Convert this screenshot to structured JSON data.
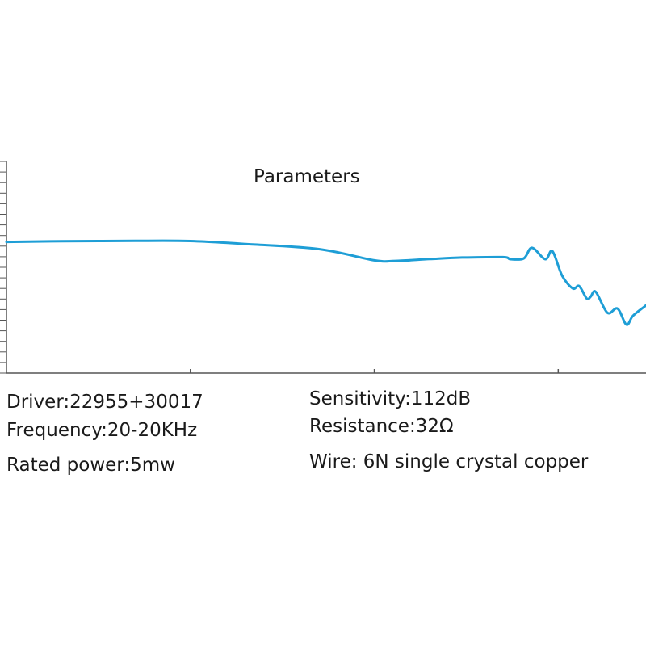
{
  "chart_data": {
    "type": "line",
    "title": "Parameters",
    "xlabel": "",
    "ylabel": "",
    "x_scale": "log",
    "xlim": [
      10,
      30000
    ],
    "ylim": [
      0,
      100
    ],
    "grid": false,
    "series": [
      {
        "color": "#1e9ed6",
        "x": [
          10,
          20,
          50,
          100,
          200,
          500,
          1000,
          1300,
          2000,
          3000,
          5000,
          5500,
          6500,
          7200,
          8500,
          9300,
          10500,
          12000,
          13000,
          14300,
          15000,
          16000,
          18500,
          21000,
          23500,
          25500,
          30000
        ],
        "y": [
          62,
          62.3,
          62.5,
          62.4,
          61,
          58.6,
          53.3,
          53,
          53.9,
          54.6,
          54.8,
          53.8,
          54.2,
          59.2,
          53.8,
          57.6,
          46,
          40,
          41.1,
          35.2,
          36.1,
          38.4,
          28.5,
          30.5,
          22.9,
          27.1,
          32
        ]
      }
    ]
  },
  "specs": {
    "driver": "Driver:22955+30017",
    "frequency": "Frequency:20-20KHz",
    "rated_power": "Rated power:5mw",
    "sensitivity": "Sensitivity:112dB",
    "resistance": "Resistance:32Ω",
    "wire": "Wire: 6N single crystal copper"
  }
}
